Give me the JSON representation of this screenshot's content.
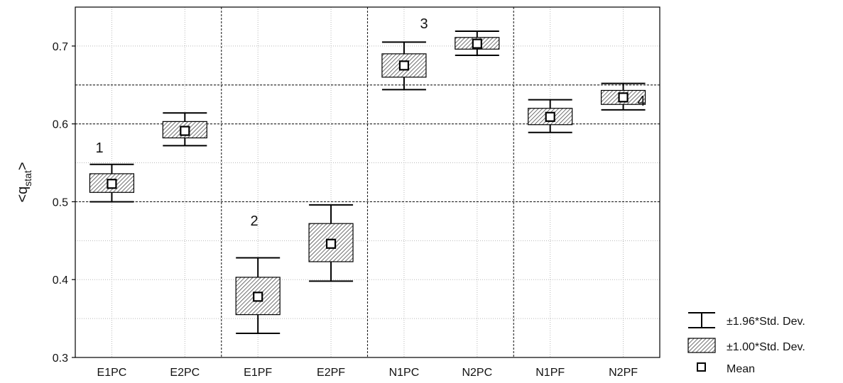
{
  "chart_data": {
    "type": "box",
    "ylabel_main": "<q",
    "ylabel_sub": "stat",
    "ylabel_end": ">",
    "ylim": [
      0.3,
      0.75
    ],
    "yticks": [
      "0.3",
      "0.4",
      "0.5",
      "0.6",
      "0.7"
    ],
    "categories": [
      "E1PC",
      "E2PC",
      "E1PF",
      "E2PF",
      "N1PC",
      "N2PC",
      "N1PF",
      "N2PF"
    ],
    "boxes": [
      {
        "category": "E1PC",
        "mean": 0.523,
        "sd1_low": 0.512,
        "sd1_high": 0.536,
        "sd196_low": 0.5,
        "sd196_high": 0.548
      },
      {
        "category": "E2PC",
        "mean": 0.591,
        "sd1_low": 0.582,
        "sd1_high": 0.603,
        "sd196_low": 0.572,
        "sd196_high": 0.614
      },
      {
        "category": "E1PF",
        "mean": 0.378,
        "sd1_low": 0.355,
        "sd1_high": 0.403,
        "sd196_low": 0.331,
        "sd196_high": 0.428
      },
      {
        "category": "E2PF",
        "mean": 0.446,
        "sd1_low": 0.423,
        "sd1_high": 0.472,
        "sd196_low": 0.398,
        "sd196_high": 0.496
      },
      {
        "category": "N1PC",
        "mean": 0.675,
        "sd1_low": 0.66,
        "sd1_high": 0.69,
        "sd196_low": 0.644,
        "sd196_high": 0.705
      },
      {
        "category": "N2PC",
        "mean": 0.703,
        "sd1_low": 0.696,
        "sd1_high": 0.711,
        "sd196_low": 0.688,
        "sd196_high": 0.719
      },
      {
        "category": "N1PF",
        "mean": 0.609,
        "sd1_low": 0.599,
        "sd1_high": 0.62,
        "sd196_low": 0.589,
        "sd196_high": 0.631
      },
      {
        "category": "N2PF",
        "mean": 0.634,
        "sd1_low": 0.625,
        "sd1_high": 0.643,
        "sd196_low": 0.618,
        "sd196_high": 0.652
      }
    ],
    "group_labels": [
      "1",
      "2",
      "3",
      "4"
    ],
    "reference_lines_y": [
      0.5,
      0.6,
      0.65
    ],
    "group_separators_after": [
      "E2PC",
      "E2PF",
      "N2PC"
    ],
    "grid": true,
    "legend": [
      {
        "symbol": "whisker",
        "label": "±1.96*Std. Dev."
      },
      {
        "symbol": "hatched-box",
        "label": "±1.00*Std. Dev."
      },
      {
        "symbol": "square",
        "label": "Mean"
      }
    ],
    "legend_position": "bottom-right"
  }
}
